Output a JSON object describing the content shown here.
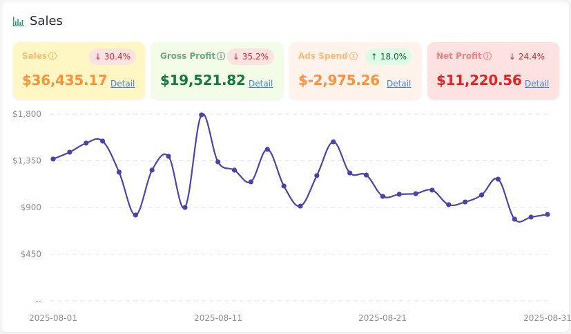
{
  "header": {
    "title": "Sales",
    "icon": "bar-chart-icon",
    "icon_color": "#22a06b"
  },
  "cards": [
    {
      "label": "Sales",
      "change": "30.4%",
      "direction": "down",
      "value": "$36,435.17",
      "detail": "Detail",
      "bg": "#fef7c3",
      "label_color": "#fdba74",
      "value_color": "#fb923c",
      "badge_bg": "#fde2e2",
      "badge_color": "#c53030"
    },
    {
      "label": "Gross Profit",
      "change": "35.2%",
      "direction": "down",
      "value": "$19,521.82",
      "detail": "Detail",
      "bg": "#f3fce6",
      "label_color": "#6aa77e",
      "value_color": "#157a3e",
      "badge_bg": "#fde2e2",
      "badge_color": "#c53030"
    },
    {
      "label": "Ads Spend",
      "change": "18.0%",
      "direction": "up",
      "value": "$-2,975.26",
      "detail": "Detail",
      "bg": "#fff3eb",
      "label_color": "#fdba74",
      "value_color": "#fb923c",
      "badge_bg": "#dcfce7",
      "badge_color": "#166534"
    },
    {
      "label": "Net Profit",
      "change": "24.4%",
      "direction": "down",
      "value": "$11,220.56",
      "detail": "Detail",
      "bg": "#fee2e2",
      "label_color": "#f08080",
      "value_color": "#dc2626",
      "badge_bg": "transparent",
      "badge_color": "#c53030"
    }
  ],
  "chart_data": {
    "type": "line",
    "title": "Sales",
    "xlabel": "",
    "ylabel": "",
    "ylim": [
      0,
      1800
    ],
    "yticks": [
      "--",
      "$450",
      "$900",
      "$1,350",
      "$1,800"
    ],
    "ytick_values": [
      0,
      450,
      900,
      1350,
      1800
    ],
    "xtick_labels": [
      "2025-08-01",
      "2025-08-11",
      "2025-08-21",
      "2025-08-31"
    ],
    "grid": true,
    "line_color": "#4945a8",
    "x": [
      "2025-08-01",
      "2025-08-02",
      "2025-08-03",
      "2025-08-04",
      "2025-08-05",
      "2025-08-06",
      "2025-08-07",
      "2025-08-08",
      "2025-08-09",
      "2025-08-10",
      "2025-08-11",
      "2025-08-12",
      "2025-08-13",
      "2025-08-14",
      "2025-08-15",
      "2025-08-16",
      "2025-08-17",
      "2025-08-18",
      "2025-08-19",
      "2025-08-20",
      "2025-08-21",
      "2025-08-22",
      "2025-08-23",
      "2025-08-24",
      "2025-08-25",
      "2025-08-26",
      "2025-08-27",
      "2025-08-28",
      "2025-08-29",
      "2025-08-30",
      "2025-08-31"
    ],
    "values": [
      1367,
      1433,
      1520,
      1540,
      1240,
      827,
      1260,
      1393,
      900,
      1793,
      1340,
      1260,
      1147,
      1460,
      1107,
      913,
      1207,
      1533,
      1233,
      1213,
      1007,
      1027,
      1033,
      1067,
      927,
      953,
      1020,
      1173,
      787,
      807,
      833
    ]
  }
}
